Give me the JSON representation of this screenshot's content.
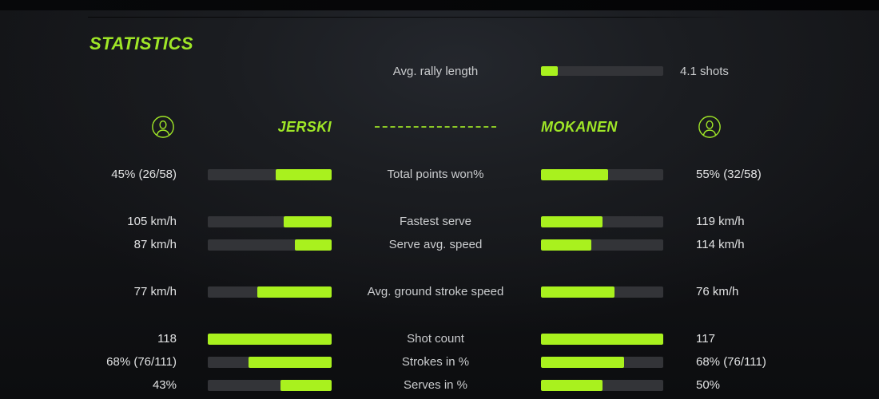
{
  "colors": {
    "accent": "#9fe627",
    "bar_fill": "#a9f11e",
    "bar_track": "#333438",
    "text": "#e1e2e3",
    "label": "#caccce"
  },
  "header": {
    "title": "STATISTICS"
  },
  "rally": {
    "label": "Avg. rally length",
    "value": "4.1 shots",
    "fill_pct": 14
  },
  "players": {
    "left": {
      "name": "JERSKI",
      "avatar_icon": "user-icon"
    },
    "right": {
      "name": "MOKANEN",
      "avatar_icon": "user-icon"
    }
  },
  "stats": {
    "rows": [
      {
        "label": "Total points won%",
        "left_value": "45% (26/58)",
        "right_value": "55% (32/58)",
        "left_fill_pct": 45,
        "right_fill_pct": 55
      },
      {
        "label": "Fastest serve",
        "left_value": "105 km/h",
        "right_value": "119 km/h",
        "left_fill_pct": 39,
        "right_fill_pct": 50
      },
      {
        "label": "Serve avg. speed",
        "left_value": "87 km/h",
        "right_value": "114 km/h",
        "left_fill_pct": 30,
        "right_fill_pct": 41
      },
      {
        "label": "Avg. ground stroke speed",
        "left_value": "77 km/h",
        "right_value": "76 km/h",
        "left_fill_pct": 60,
        "right_fill_pct": 60
      },
      {
        "label": "Shot count",
        "left_value": "118",
        "right_value": "117",
        "left_fill_pct": 100,
        "right_fill_pct": 100
      },
      {
        "label": "Strokes in %",
        "left_value": "68% (76/111)",
        "right_value": "68% (76/111)",
        "left_fill_pct": 67,
        "right_fill_pct": 68
      },
      {
        "label": "Serves in %",
        "left_value": "43%",
        "right_value": "50%",
        "left_fill_pct": 41,
        "right_fill_pct": 50
      }
    ]
  },
  "chart_data": {
    "type": "bar",
    "title": "STATISTICS",
    "legend_entries": [
      "JERSKI",
      "MOKANEN"
    ],
    "categories": [
      "Total points won%",
      "Fastest serve",
      "Serve avg. speed",
      "Avg. ground stroke speed",
      "Shot count",
      "Strokes in %",
      "Serves in %"
    ],
    "series": [
      {
        "name": "JERSKI",
        "values": [
          45,
          105,
          87,
          77,
          118,
          68,
          43
        ],
        "value_labels": [
          "45% (26/58)",
          "105 km/h",
          "87 km/h",
          "77 km/h",
          "118",
          "68% (76/111)",
          "43%"
        ],
        "bar_fill_pct": [
          45,
          39,
          30,
          60,
          100,
          67,
          41
        ]
      },
      {
        "name": "MOKANEN",
        "values": [
          55,
          119,
          114,
          76,
          117,
          68,
          50
        ],
        "value_labels": [
          "55% (32/58)",
          "119 km/h",
          "114 km/h",
          "76 km/h",
          "117",
          "68% (76/111)",
          "50%"
        ],
        "bar_fill_pct": [
          55,
          50,
          41,
          60,
          100,
          68,
          50
        ]
      }
    ],
    "annotations": [
      {
        "label": "Avg. rally length",
        "value": "4.1 shots",
        "bar_fill_pct": 14
      }
    ],
    "layout": {
      "orientation": "horizontal",
      "mirrored": true,
      "grid": false,
      "background": "dark"
    }
  }
}
